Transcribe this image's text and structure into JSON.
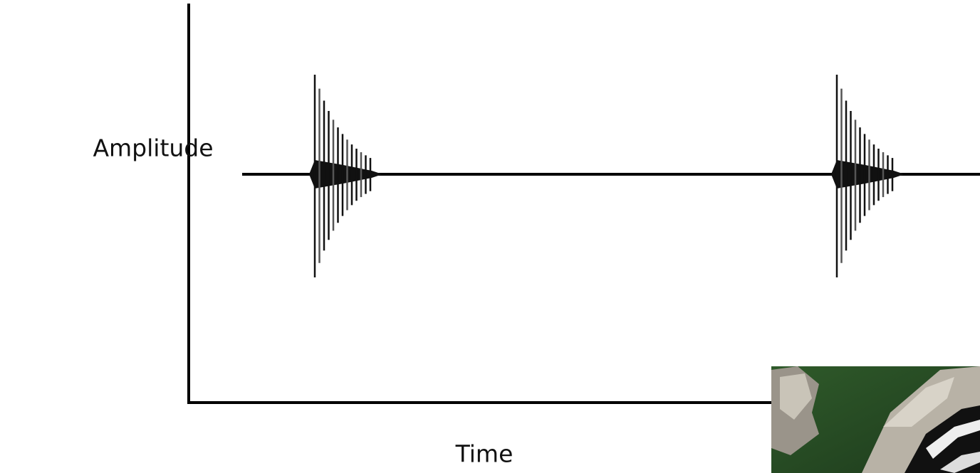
{
  "axes": {
    "y_label": "Amplitude",
    "x_label": "Time"
  }
}
